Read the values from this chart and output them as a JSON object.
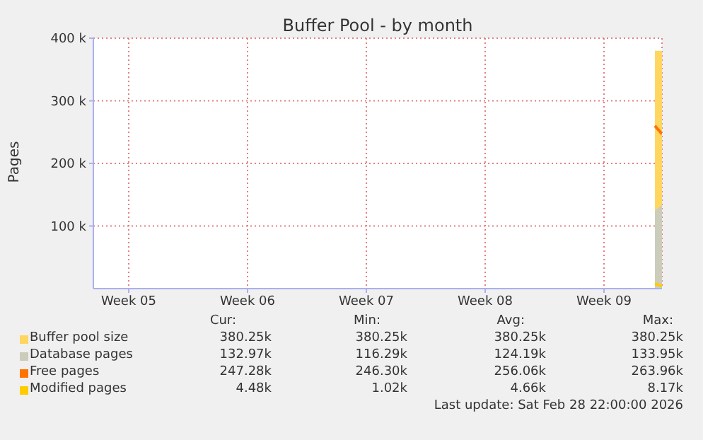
{
  "chart_data": {
    "type": "area",
    "title": "Buffer Pool - by month",
    "ylabel": "Pages",
    "xlim": [
      "2026-01-26T10:00",
      "2026-02-28T22:00"
    ],
    "xticks": [
      {
        "value": "2026-01-28T12:00",
        "label": "Week 05"
      },
      {
        "value": "2026-02-04T12:00",
        "label": "Week 06"
      },
      {
        "value": "2026-02-11T12:00",
        "label": "Week 07"
      },
      {
        "value": "2026-02-18T12:00",
        "label": "Week 08"
      },
      {
        "value": "2026-02-25T12:00",
        "label": "Week 09"
      }
    ],
    "ylim": [
      0,
      400000
    ],
    "yticks": [
      {
        "value": 100000,
        "label": "100 k"
      },
      {
        "value": 200000,
        "label": "200 k"
      },
      {
        "value": 300000,
        "label": "300 k"
      },
      {
        "value": 400000,
        "label": "400 k"
      }
    ],
    "grid": true,
    "legend": "bottom",
    "series": [
      {
        "name": "Buffer pool size",
        "color": "#ffd660",
        "x": [
          "2026-02-28T12:00",
          "2026-02-28T22:00"
        ],
        "values": [
          380000,
          380000
        ]
      },
      {
        "name": "Database pages",
        "color": "#ccccbb",
        "x": [
          "2026-02-28T12:00",
          "2026-02-28T22:00"
        ],
        "values": [
          125000,
          133000
        ]
      },
      {
        "name": "Free pages",
        "type": "line",
        "color": "#ff7300",
        "x": [
          "2026-02-28T12:00",
          "2026-02-28T22:00"
        ],
        "values": [
          260000,
          247000
        ]
      },
      {
        "name": "Modified pages",
        "type": "line",
        "color": "#ffcc00",
        "x": [
          "2026-02-28T12:00",
          "2026-02-28T22:00"
        ],
        "values": [
          8000,
          4000
        ]
      }
    ],
    "annotations": [
      "Cur:",
      "Min:",
      "Avg:",
      "Max:",
      "380.25k",
      "380.25k",
      "380.25k",
      "380.25k",
      "132.97k",
      "116.29k",
      "124.19k",
      "133.95k",
      "247.28k",
      "246.30k",
      "256.06k",
      "263.96k",
      "4.48k",
      "1.02k",
      "4.66k",
      "8.17k",
      "Last update: Sat Feb 28 22:00:00 2026"
    ]
  }
}
